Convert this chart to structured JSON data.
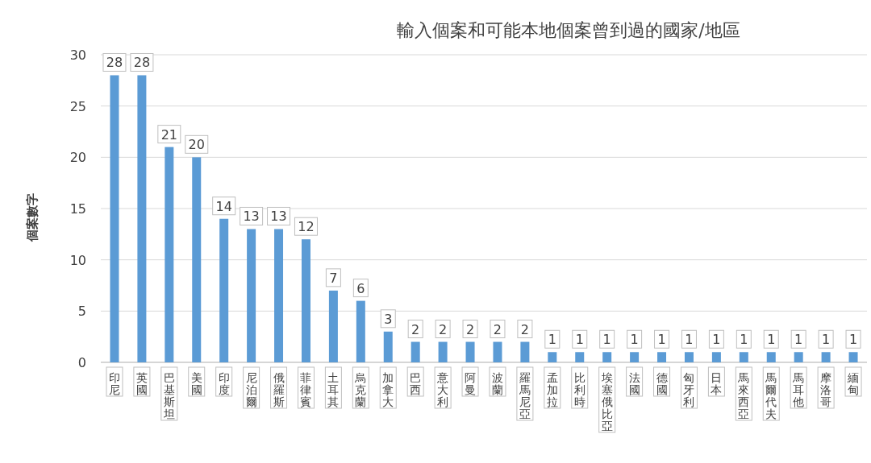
{
  "chart_data": {
    "type": "bar",
    "title": "輸入個案和可能本地個案曾到過的國家/地區",
    "ylabel": "個案數字",
    "categories": [
      "印尼",
      "英國",
      "巴基斯坦",
      "美國",
      "印度",
      "尼泊爾",
      "俄羅斯",
      "菲律賓",
      "土耳其",
      "烏克蘭",
      "加拿大",
      "巴西",
      "意大利",
      "阿曼",
      "波蘭",
      "羅馬尼亞",
      "孟加拉",
      "比利時",
      "埃塞俄比亞",
      "法國",
      "德國",
      "匈牙利",
      "日本",
      "馬來西亞",
      "馬爾代夫",
      "馬耳他",
      "摩洛哥",
      "緬甸"
    ],
    "values": [
      28,
      28,
      21,
      20,
      14,
      13,
      13,
      12,
      7,
      6,
      3,
      2,
      2,
      2,
      2,
      2,
      1,
      1,
      1,
      1,
      1,
      1,
      1,
      1,
      1,
      1,
      1,
      1
    ],
    "color": "#5b9bd5",
    "ylim": [
      0,
      30
    ],
    "yticks": [
      0,
      5,
      10,
      15,
      20,
      25,
      30
    ],
    "grid": "y",
    "data_labels": true
  }
}
